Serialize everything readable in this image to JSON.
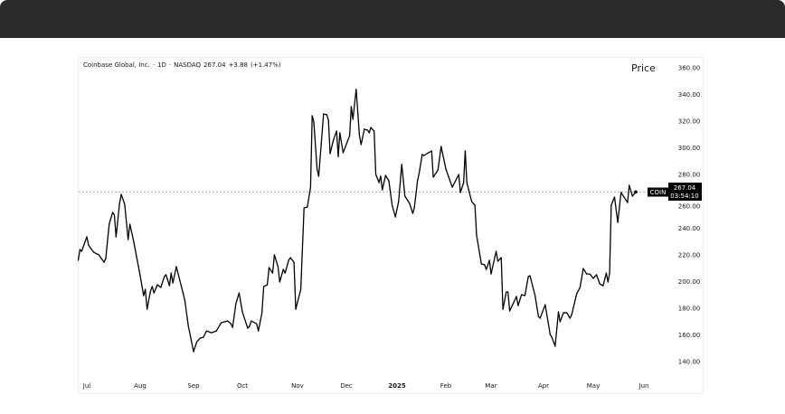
{
  "header": {
    "title": ""
  },
  "legend": {
    "name": "Coinbase Global, Inc.",
    "interval": "1D",
    "exchange": "NASDAQ",
    "last": "267.04",
    "change": "+3.88",
    "change_pct": "(+1.47%)",
    "separator": "·"
  },
  "price_label": "Price",
  "last_price_tag": {
    "symbol": "COIN",
    "price": "267.04",
    "countdown": "03:54:10"
  },
  "colors": {
    "line": "#000000",
    "tag_bg": "#000000",
    "tag_text": "#ffffff",
    "grid_line": "#9598a1",
    "header_bar": "#2b2b2b"
  },
  "chart_data": {
    "type": "line",
    "title": "",
    "xlabel": "",
    "ylabel": "Price",
    "ylim": [
      140,
      360
    ],
    "yticks": [
      "140.00",
      "160.00",
      "180.00",
      "200.00",
      "220.00",
      "240.00",
      "260.00",
      "280.00",
      "300.00",
      "320.00",
      "340.00",
      "360.00"
    ],
    "xticks": [
      {
        "label": "Jul",
        "date": "2024-07-01"
      },
      {
        "label": "Aug",
        "date": "2024-08-01"
      },
      {
        "label": "Sep",
        "date": "2024-09-01"
      },
      {
        "label": "Oct",
        "date": "2024-10-01"
      },
      {
        "label": "Nov",
        "date": "2024-11-01"
      },
      {
        "label": "Dec",
        "date": "2024-12-01"
      },
      {
        "label": "2025",
        "date": "2025-01-01",
        "bold": true
      },
      {
        "label": "Feb",
        "date": "2025-02-01"
      },
      {
        "label": "Mar",
        "date": "2025-03-01"
      },
      {
        "label": "Apr",
        "date": "2025-04-01"
      },
      {
        "label": "May",
        "date": "2025-05-01"
      },
      {
        "label": "Jun",
        "date": "2025-06-01"
      }
    ],
    "grid": false,
    "price_line": 267.04,
    "series": [
      {
        "points": [
          [
            "2024-06-26",
            215.8
          ],
          [
            "2024-06-27",
            223.9
          ],
          [
            "2024-06-28",
            222.6
          ],
          [
            "2024-07-01",
            233.4
          ],
          [
            "2024-07-02",
            227.3
          ],
          [
            "2024-07-03",
            225.3
          ],
          [
            "2024-07-05",
            221.9
          ],
          [
            "2024-07-07",
            220.5
          ],
          [
            "2024-07-08",
            219.9
          ],
          [
            "2024-07-11",
            214.4
          ],
          [
            "2024-07-12",
            217.2
          ],
          [
            "2024-07-14",
            242.9
          ],
          [
            "2024-07-16",
            251.7
          ],
          [
            "2024-07-17",
            249.7
          ],
          [
            "2024-07-18",
            233.4
          ],
          [
            "2024-07-20",
            258.4
          ],
          [
            "2024-07-21",
            265.2
          ],
          [
            "2024-07-23",
            257.8
          ],
          [
            "2024-07-25",
            231.4
          ],
          [
            "2024-07-26",
            242.9
          ],
          [
            "2024-07-28",
            231.4
          ],
          [
            "2024-07-29",
            224.6
          ],
          [
            "2024-07-31",
            211.1
          ],
          [
            "2024-08-01",
            204.3
          ],
          [
            "2024-08-03",
            189.4
          ],
          [
            "2024-08-04",
            194.1
          ],
          [
            "2024-08-05",
            179.2
          ],
          [
            "2024-08-07",
            192.8
          ],
          [
            "2024-08-08",
            196.2
          ],
          [
            "2024-08-09",
            191.4
          ],
          [
            "2024-08-11",
            197.5
          ],
          [
            "2024-08-13",
            195.5
          ],
          [
            "2024-08-15",
            203.6
          ],
          [
            "2024-08-16",
            205.0
          ],
          [
            "2024-08-18",
            196.8
          ],
          [
            "2024-08-19",
            206.3
          ],
          [
            "2024-08-20",
            198.9
          ],
          [
            "2024-08-22",
            211.1
          ],
          [
            "2024-08-24",
            201.0
          ],
          [
            "2024-08-26",
            190.8
          ],
          [
            "2024-08-27",
            185.4
          ],
          [
            "2024-08-29",
            166.4
          ],
          [
            "2024-08-30",
            160.3
          ],
          [
            "2024-09-01",
            147.4
          ],
          [
            "2024-09-03",
            154.8
          ],
          [
            "2024-09-05",
            157.5
          ],
          [
            "2024-09-07",
            158.2
          ],
          [
            "2024-09-09",
            162.9
          ],
          [
            "2024-09-12",
            161.6
          ],
          [
            "2024-09-15",
            162.9
          ],
          [
            "2024-09-18",
            169.1
          ],
          [
            "2024-09-22",
            170.4
          ],
          [
            "2024-09-24",
            168.3
          ],
          [
            "2024-09-25",
            165.6
          ],
          [
            "2024-09-27",
            183.3
          ],
          [
            "2024-09-29",
            191.4
          ],
          [
            "2024-10-01",
            177.2
          ],
          [
            "2024-10-04",
            165.0
          ],
          [
            "2024-10-05",
            166.4
          ],
          [
            "2024-10-06",
            170.4
          ],
          [
            "2024-10-09",
            168.3
          ],
          [
            "2024-10-10",
            162.9
          ],
          [
            "2024-10-12",
            176.5
          ],
          [
            "2024-10-13",
            196.2
          ],
          [
            "2024-10-15",
            197.5
          ],
          [
            "2024-10-16",
            210.4
          ],
          [
            "2024-10-18",
            206.3
          ],
          [
            "2024-10-19",
            219.9
          ],
          [
            "2024-10-21",
            211.1
          ],
          [
            "2024-10-22",
            199.6
          ],
          [
            "2024-10-24",
            209.1
          ],
          [
            "2024-10-25",
            206.3
          ],
          [
            "2024-10-27",
            215.8
          ],
          [
            "2024-10-28",
            217.8
          ],
          [
            "2024-10-30",
            214.4
          ],
          [
            "2024-10-31",
            179.2
          ],
          [
            "2024-11-03",
            194.1
          ],
          [
            "2024-11-05",
            255.1
          ],
          [
            "2024-11-07",
            255.7
          ],
          [
            "2024-11-09",
            270.6
          ],
          [
            "2024-11-10",
            324.1
          ],
          [
            "2024-11-11",
            319.4
          ],
          [
            "2024-11-13",
            284.2
          ],
          [
            "2024-11-14",
            278.8
          ],
          [
            "2024-11-17",
            325.5
          ],
          [
            "2024-11-19",
            324.8
          ],
          [
            "2024-11-20",
            320.7
          ],
          [
            "2024-11-21",
            295.7
          ],
          [
            "2024-11-23",
            305.8
          ],
          [
            "2024-11-25",
            312.6
          ],
          [
            "2024-11-26",
            293.6
          ],
          [
            "2024-11-27",
            311.3
          ],
          [
            "2024-11-29",
            296.4
          ],
          [
            "2024-12-03",
            309.2
          ],
          [
            "2024-12-04",
            330.9
          ],
          [
            "2024-12-05",
            321.4
          ],
          [
            "2024-12-07",
            343.8
          ],
          [
            "2024-12-09",
            309.2
          ],
          [
            "2024-12-10",
            302.5
          ],
          [
            "2024-12-12",
            314.0
          ],
          [
            "2024-12-14",
            313.3
          ],
          [
            "2024-12-15",
            311.3
          ],
          [
            "2024-12-16",
            315.3
          ],
          [
            "2024-12-18",
            312.6
          ],
          [
            "2024-12-19",
            280.1
          ],
          [
            "2024-12-21",
            274.0
          ],
          [
            "2024-12-22",
            278.8
          ],
          [
            "2024-12-23",
            268.6
          ],
          [
            "2024-12-25",
            279.4
          ],
          [
            "2024-12-27",
            275.4
          ],
          [
            "2024-12-29",
            257.1
          ],
          [
            "2024-12-31",
            248.3
          ],
          [
            "2025-01-02",
            259.8
          ],
          [
            "2025-01-04",
            287.6
          ],
          [
            "2025-01-06",
            263.9
          ],
          [
            "2025-01-09",
            258.4
          ],
          [
            "2025-01-11",
            251.0
          ],
          [
            "2025-01-12",
            255.1
          ],
          [
            "2025-01-14",
            275.4
          ],
          [
            "2025-01-15",
            280.8
          ],
          [
            "2025-01-17",
            295.0
          ],
          [
            "2025-01-18",
            294.3
          ],
          [
            "2025-01-21",
            296.4
          ],
          [
            "2025-01-23",
            297.7
          ],
          [
            "2025-01-24",
            278.1
          ],
          [
            "2025-01-27",
            283.5
          ],
          [
            "2025-01-29",
            301.1
          ],
          [
            "2025-02-01",
            284.2
          ],
          [
            "2025-02-05",
            270.6
          ],
          [
            "2025-02-09",
            280.1
          ],
          [
            "2025-02-10",
            266.6
          ],
          [
            "2025-02-12",
            274.0
          ],
          [
            "2025-02-13",
            297.7
          ],
          [
            "2025-02-14",
            274.0
          ],
          [
            "2025-02-17",
            259.8
          ],
          [
            "2025-02-19",
            257.1
          ],
          [
            "2025-02-20",
            234.8
          ],
          [
            "2025-02-23",
            213.1
          ],
          [
            "2025-02-25",
            212.4
          ],
          [
            "2025-02-26",
            209.0
          ],
          [
            "2025-02-28",
            215.8
          ],
          [
            "2025-03-01",
            205.6
          ],
          [
            "2025-03-04",
            222.6
          ],
          [
            "2025-03-05",
            215.1
          ],
          [
            "2025-03-07",
            217.8
          ],
          [
            "2025-03-08",
            179.2
          ],
          [
            "2025-03-10",
            192.1
          ],
          [
            "2025-03-11",
            192.1
          ],
          [
            "2025-03-12",
            177.9
          ],
          [
            "2025-03-16",
            188.7
          ],
          [
            "2025-03-17",
            181.9
          ],
          [
            "2025-03-19",
            190.1
          ],
          [
            "2025-03-21",
            189.4
          ],
          [
            "2025-03-23",
            203.6
          ],
          [
            "2025-03-24",
            204.3
          ],
          [
            "2025-03-27",
            189.4
          ],
          [
            "2025-03-29",
            173.8
          ],
          [
            "2025-03-30",
            172.5
          ],
          [
            "2025-04-02",
            182.6
          ],
          [
            "2025-04-05",
            160.3
          ],
          [
            "2025-04-06",
            158.3
          ],
          [
            "2025-04-08",
            151.5
          ],
          [
            "2025-04-10",
            177.2
          ],
          [
            "2025-04-11",
            169.8
          ],
          [
            "2025-04-13",
            176.5
          ],
          [
            "2025-04-15",
            176.5
          ],
          [
            "2025-04-17",
            172.5
          ],
          [
            "2025-04-18",
            175.2
          ],
          [
            "2025-04-21",
            190.8
          ],
          [
            "2025-04-23",
            195.5
          ],
          [
            "2025-04-25",
            209.7
          ],
          [
            "2025-04-27",
            205.6
          ],
          [
            "2025-04-29",
            205.6
          ],
          [
            "2025-05-01",
            202.3
          ],
          [
            "2025-05-03",
            205.0
          ],
          [
            "2025-05-05",
            198.2
          ],
          [
            "2025-05-07",
            196.8
          ],
          [
            "2025-05-09",
            206.3
          ],
          [
            "2025-05-10",
            199.6
          ],
          [
            "2025-05-11",
            206.3
          ],
          [
            "2025-05-12",
            257.1
          ],
          [
            "2025-05-14",
            263.2
          ],
          [
            "2025-05-16",
            244.2
          ],
          [
            "2025-05-18",
            266.6
          ],
          [
            "2025-05-22",
            259.1
          ],
          [
            "2025-05-23",
            272.0
          ],
          [
            "2025-05-25",
            263.9
          ],
          [
            "2025-05-27",
            267.04
          ]
        ]
      }
    ]
  }
}
